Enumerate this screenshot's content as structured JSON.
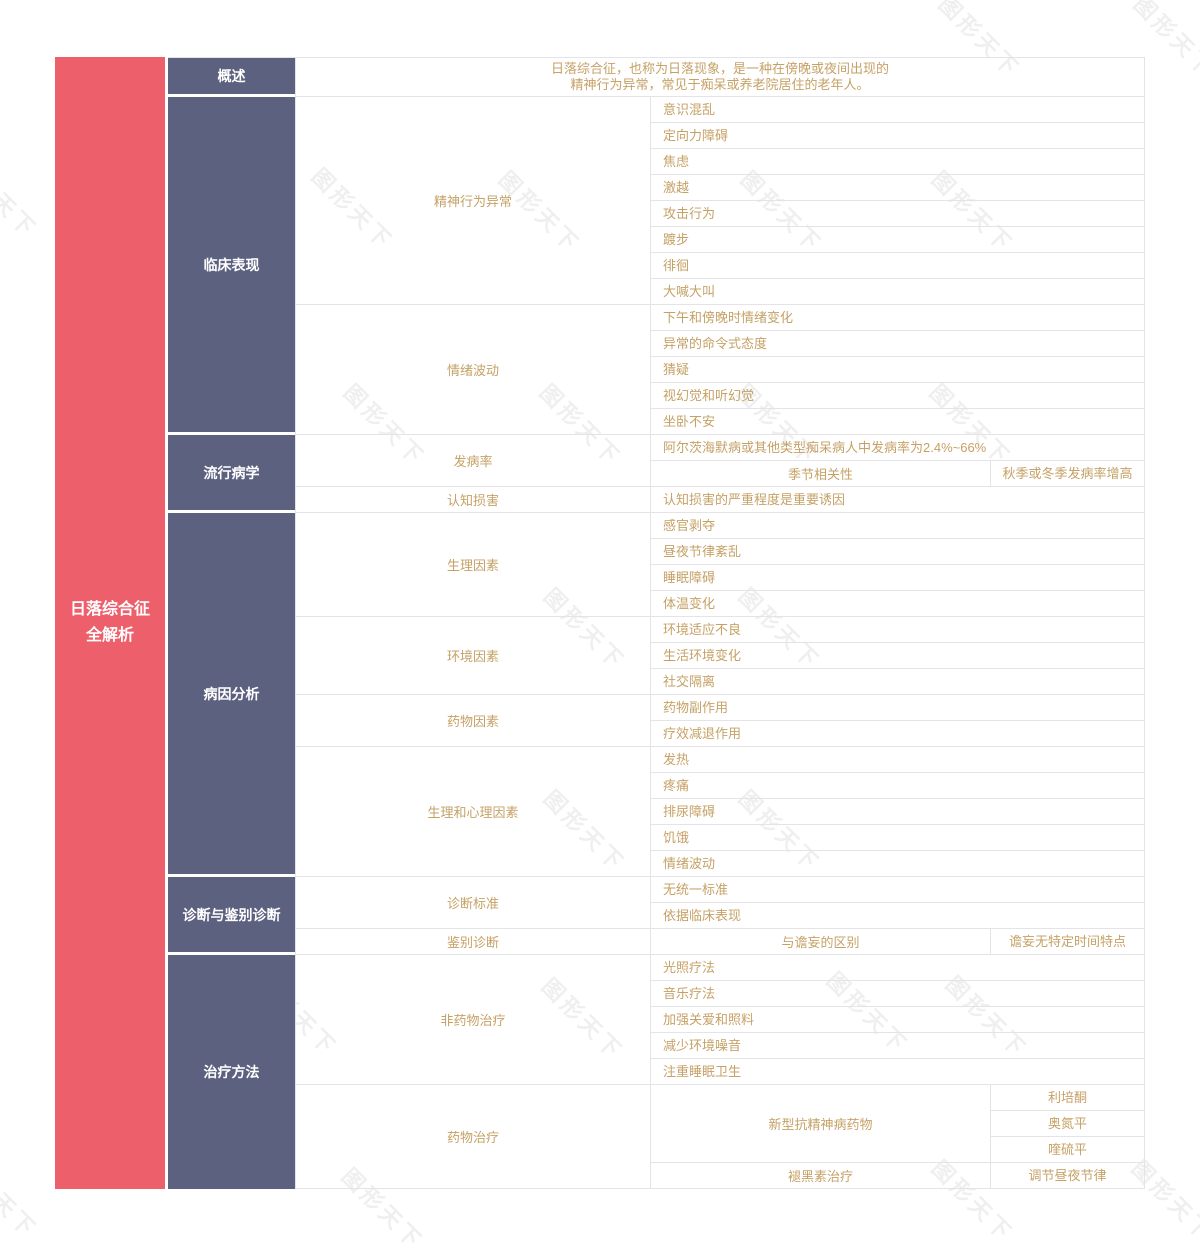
{
  "palette": {
    "root_background": "#ec5f6b",
    "section_background": "#5d6180",
    "text_gold": "#c6a166",
    "grid_line": "#e3e3e8"
  },
  "watermark": {
    "text": "图形天下"
  },
  "root": {
    "title_lines": [
      "日落综合征",
      "全解析"
    ]
  },
  "sections": [
    {
      "label": "概述",
      "overview_lines": [
        "日落综合征，也称为日落现象，是一种在傍晚或夜间出现的",
        "精神行为异常，常见于痴呆或养老院居住的老年人。"
      ]
    },
    {
      "label": "临床表现",
      "subs": [
        {
          "label": "精神行为异常",
          "rows": [
            {
              "type": "leaf",
              "text": "意识混乱"
            },
            {
              "type": "leaf",
              "text": "定向力障碍"
            },
            {
              "type": "leaf",
              "text": "焦虑"
            },
            {
              "type": "leaf",
              "text": "激越"
            },
            {
              "type": "leaf",
              "text": "攻击行为"
            },
            {
              "type": "leaf",
              "text": "踱步"
            },
            {
              "type": "leaf",
              "text": "徘徊"
            },
            {
              "type": "leaf",
              "text": "大喊大叫"
            }
          ]
        },
        {
          "label": "情绪波动",
          "rows": [
            {
              "type": "leaf",
              "text": "下午和傍晚时情绪变化"
            },
            {
              "type": "leaf",
              "text": "异常的命令式态度"
            },
            {
              "type": "leaf",
              "text": "猜疑"
            },
            {
              "type": "leaf",
              "text": "视幻觉和听幻觉"
            },
            {
              "type": "leaf",
              "text": "坐卧不安"
            }
          ]
        }
      ]
    },
    {
      "label": "流行病学",
      "subs": [
        {
          "label": "发病率",
          "rows": [
            {
              "type": "leaf",
              "text": "阿尔茨海默病或其他类型痴呆病人中发病率为2.4%~66%"
            },
            {
              "type": "pair",
              "left": "季节相关性",
              "right": "秋季或冬季发病率增高"
            }
          ]
        },
        {
          "label": "认知损害",
          "rows": [
            {
              "type": "leaf",
              "text": "认知损害的严重程度是重要诱因"
            }
          ]
        }
      ]
    },
    {
      "label": "病因分析",
      "subs": [
        {
          "label": "生理因素",
          "rows": [
            {
              "type": "leaf",
              "text": "感官剥夺"
            },
            {
              "type": "leaf",
              "text": "昼夜节律紊乱"
            },
            {
              "type": "leaf",
              "text": "睡眠障碍"
            },
            {
              "type": "leaf",
              "text": "体温变化"
            }
          ]
        },
        {
          "label": "环境因素",
          "rows": [
            {
              "type": "leaf",
              "text": "环境适应不良"
            },
            {
              "type": "leaf",
              "text": "生活环境变化"
            },
            {
              "type": "leaf",
              "text": "社交隔离"
            }
          ]
        },
        {
          "label": "药物因素",
          "rows": [
            {
              "type": "leaf",
              "text": "药物副作用"
            },
            {
              "type": "leaf",
              "text": "疗效减退作用"
            }
          ]
        },
        {
          "label": "生理和心理因素",
          "rows": [
            {
              "type": "leaf",
              "text": "发热"
            },
            {
              "type": "leaf",
              "text": "疼痛"
            },
            {
              "type": "leaf",
              "text": "排尿障碍"
            },
            {
              "type": "leaf",
              "text": "饥饿"
            },
            {
              "type": "leaf",
              "text": "情绪波动"
            }
          ]
        }
      ]
    },
    {
      "label": "诊断与鉴别诊断",
      "subs": [
        {
          "label": "诊断标准",
          "rows": [
            {
              "type": "leaf",
              "text": "无统一标准"
            },
            {
              "type": "leaf",
              "text": "依据临床表现"
            }
          ]
        },
        {
          "label": "鉴别诊断",
          "rows": [
            {
              "type": "pair",
              "left": "与谵妄的区别",
              "right": "谵妄无特定时间特点"
            }
          ]
        }
      ]
    },
    {
      "label": "治疗方法",
      "subs": [
        {
          "label": "非药物治疗",
          "rows": [
            {
              "type": "leaf",
              "text": "光照疗法"
            },
            {
              "type": "leaf",
              "text": "音乐疗法"
            },
            {
              "type": "leaf",
              "text": "加强关爱和照料"
            },
            {
              "type": "leaf",
              "text": "减少环境噪音"
            },
            {
              "type": "leaf",
              "text": "注重睡眠卫生"
            }
          ]
        },
        {
          "label": "药物治疗",
          "rows": [
            {
              "type": "group",
              "left": "新型抗精神病药物",
              "rights": [
                "利培酮",
                "奥氮平",
                "喹硫平"
              ]
            },
            {
              "type": "pair",
              "left": "褪黑素治疗",
              "right": "调节昼夜节律"
            }
          ]
        }
      ]
    }
  ]
}
